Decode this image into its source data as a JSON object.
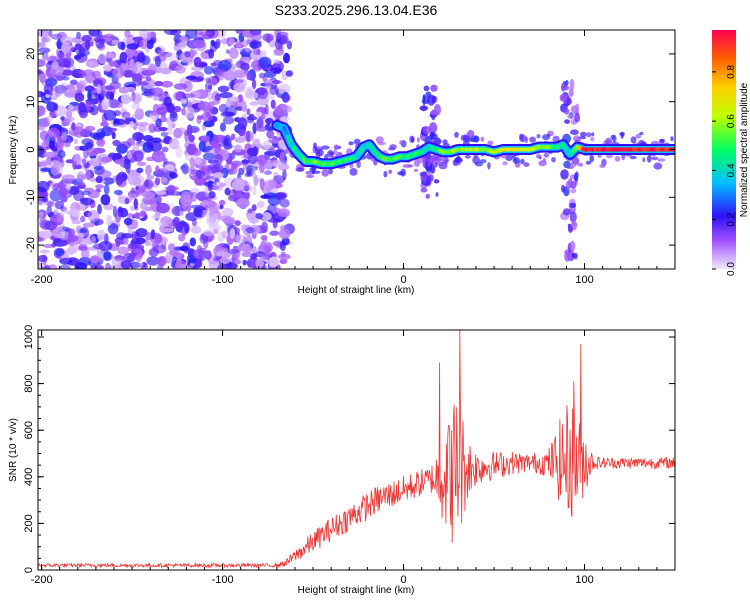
{
  "chart_data": [
    {
      "type": "heatmap",
      "title": "S233.2025.296.13.04.E36",
      "xlabel": "Height of straight line (km)",
      "ylabel": "Frequency (Hz)",
      "xlim": [
        -202,
        150
      ],
      "ylim": [
        -25,
        25
      ],
      "xticks": [
        -200,
        -100,
        0,
        100
      ],
      "yticks": [
        -20,
        -10,
        0,
        10,
        20
      ],
      "noise_region": {
        "x_from": -202,
        "x_to": -67,
        "amplitude_range": [
          0.02,
          0.25
        ]
      },
      "ridge": {
        "x": [
          -70,
          -66,
          -62,
          -58,
          -54,
          -50,
          -45,
          -40,
          -35,
          -30,
          -26,
          -22,
          -19,
          -16,
          -13,
          -10,
          -6,
          -2,
          2,
          6,
          10,
          14,
          18,
          22,
          26,
          30,
          35,
          40,
          45,
          50,
          55,
          60,
          65,
          70,
          75,
          80,
          85,
          88,
          92,
          96,
          100,
          105,
          110,
          120,
          130,
          140,
          150
        ],
        "freq": [
          5.0,
          4.5,
          1.0,
          -1.0,
          -2.5,
          -2.5,
          -3.0,
          -3.0,
          -2.5,
          -2.0,
          -1.5,
          0.5,
          1.0,
          -0.5,
          -1.5,
          -2.0,
          -2.0,
          -1.5,
          -1.5,
          -1.0,
          -0.5,
          0.5,
          0.0,
          -0.5,
          -0.5,
          0.0,
          0.0,
          0.0,
          0.0,
          -0.5,
          0.0,
          0.0,
          0.0,
          0.0,
          0.5,
          0.5,
          0.5,
          1.0,
          -1.0,
          0.5,
          0.0,
          0.0,
          0.0,
          0.0,
          0.0,
          0.0,
          0.0
        ],
        "amplitude": [
          0.35,
          0.35,
          0.4,
          0.45,
          0.5,
          0.55,
          0.55,
          0.55,
          0.5,
          0.5,
          0.45,
          0.4,
          0.4,
          0.45,
          0.5,
          0.55,
          0.55,
          0.5,
          0.5,
          0.5,
          0.45,
          0.4,
          0.5,
          0.55,
          0.6,
          0.6,
          0.65,
          0.65,
          0.6,
          0.65,
          0.7,
          0.7,
          0.7,
          0.65,
          0.6,
          0.6,
          0.5,
          0.45,
          0.4,
          0.6,
          0.95,
          0.95,
          0.95,
          0.95,
          0.95,
          0.95,
          0.95
        ]
      },
      "vertical_bursts": [
        {
          "x": 15,
          "freq_range": [
            -10,
            13
          ]
        },
        {
          "x": 92,
          "freq_range": [
            -23,
            14
          ]
        }
      ],
      "colorbar": {
        "label": "Normalized spectral amplitude",
        "range": [
          0,
          0.97
        ],
        "ticks": [
          "0.0",
          "0.2",
          "0.4",
          "0.6",
          "0.8"
        ],
        "tick_values": [
          0.0,
          0.2,
          0.4,
          0.6,
          0.8
        ]
      }
    },
    {
      "type": "line",
      "xlabel": "Height of straight line (km)",
      "ylabel": "SNR (10 * v/v)",
      "xlim": [
        -202,
        150
      ],
      "ylim": [
        0,
        1030
      ],
      "xticks": [
        -200,
        -100,
        0,
        100
      ],
      "yticks": [
        0,
        200,
        400,
        600,
        800,
        1000
      ],
      "color": "#ee3333",
      "envelope": {
        "x": [
          -202,
          -150,
          -100,
          -70,
          -65,
          -55,
          -45,
          -35,
          -25,
          -15,
          -5,
          5,
          15,
          20,
          25,
          30,
          35,
          40,
          50,
          60,
          70,
          80,
          90,
          95,
          100,
          105,
          110,
          120,
          130,
          140,
          150
        ],
        "mean": [
          20,
          20,
          20,
          20,
          30,
          90,
          150,
          200,
          250,
          300,
          330,
          360,
          390,
          400,
          420,
          430,
          440,
          440,
          450,
          460,
          460,
          460,
          470,
          470,
          470,
          460,
          460,
          460,
          460,
          460,
          460
        ],
        "noise": [
          8,
          8,
          8,
          8,
          15,
          40,
          50,
          55,
          60,
          60,
          60,
          60,
          60,
          150,
          300,
          350,
          150,
          80,
          60,
          50,
          40,
          60,
          250,
          250,
          150,
          30,
          25,
          25,
          25,
          25,
          25
        ]
      },
      "peaks": [
        {
          "x": 20,
          "y": 890
        },
        {
          "x": 25,
          "y": 620
        },
        {
          "x": 31,
          "y": 1030
        },
        {
          "x": 94,
          "y": 810
        },
        {
          "x": 98,
          "y": 970
        }
      ]
    }
  ]
}
